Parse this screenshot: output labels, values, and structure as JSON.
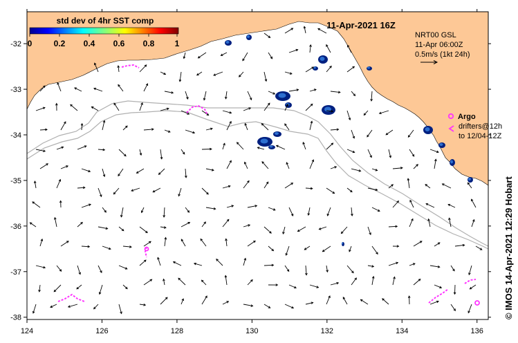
{
  "title": "11-Apr-2021 16Z",
  "colorbar": {
    "label": "std dev of 4hr SST comp",
    "ticks": [
      "0",
      "0.2",
      "0.4",
      "0.6",
      "0.8",
      "1"
    ]
  },
  "velocity_info": {
    "line1": "NRT00 GSL",
    "line2": "11-Apr 06:00Z",
    "line3": "0.5m/s (1kt 24h)"
  },
  "legend": {
    "argo_label": "Argo",
    "drifters_line1": "drifters@12h",
    "drifters_line2": "to 12/04-12Z"
  },
  "credit": "© IMOS 14-Apr-2021 12:29 Hobart",
  "x_ticks": [
    "124",
    "126",
    "128",
    "130",
    "132",
    "134",
    "136"
  ],
  "y_ticks": [
    "-32",
    "-33",
    "-34",
    "-35",
    "-36",
    "-37",
    "-38"
  ],
  "x_range": [
    124,
    136.3
  ],
  "y_range": [
    -38.05,
    -31.3
  ],
  "colors": {
    "land": "#fdc896",
    "argo": "#ff33ff",
    "shelf": "#b0b0b0",
    "sst_dark": "#002080",
    "sst_light": "#2d6fd0"
  }
}
